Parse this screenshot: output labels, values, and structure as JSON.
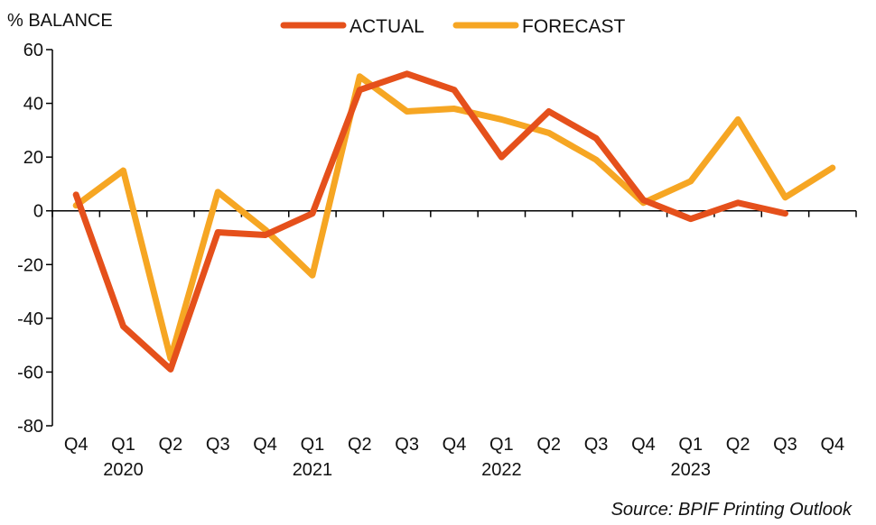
{
  "chart_data": {
    "type": "line",
    "ylabel": "% BALANCE",
    "ylim": [
      -80,
      60
    ],
    "yticks": [
      -80,
      -60,
      -40,
      -20,
      0,
      20,
      40,
      60
    ],
    "categories": [
      "Q4",
      "Q1",
      "Q2",
      "Q3",
      "Q4",
      "Q1",
      "Q2",
      "Q3",
      "Q4",
      "Q1",
      "Q2",
      "Q3",
      "Q4",
      "Q1",
      "Q2",
      "Q3",
      "Q4"
    ],
    "year_labels": [
      {
        "label": "2020",
        "category_index": 1
      },
      {
        "label": "2021",
        "category_index": 5
      },
      {
        "label": "2022",
        "category_index": 9
      },
      {
        "label": "2023",
        "category_index": 13
      }
    ],
    "series": [
      {
        "name": "ACTUAL",
        "color": "#E5501B",
        "values": [
          6,
          -43,
          -59,
          -8,
          -9,
          -1,
          45,
          51,
          45,
          20,
          37,
          27,
          4,
          -3,
          3,
          -1,
          null
        ]
      },
      {
        "name": "FORECAST",
        "color": "#F6A623",
        "values": [
          2,
          15,
          -55,
          7,
          -7,
          -24,
          50,
          37,
          38,
          34,
          29,
          19,
          3,
          11,
          34,
          5,
          16
        ]
      }
    ],
    "legend": "top",
    "grid": false,
    "source": "Source: BPIF Printing Outlook"
  }
}
